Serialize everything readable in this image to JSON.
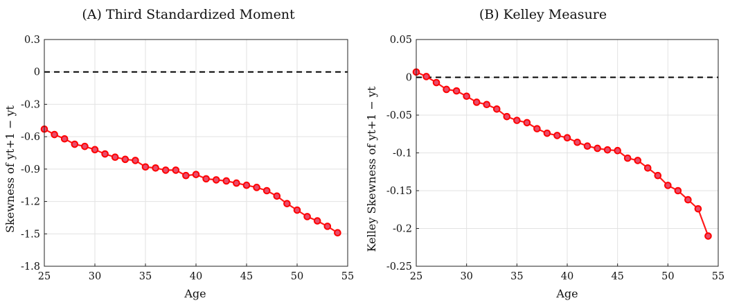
{
  "chart_data": [
    {
      "type": "line",
      "title": "(A) Third Standardized Moment",
      "xlabel": "Age",
      "ylabel": "Skewness of yt+1 − yt",
      "xlim": [
        25,
        55
      ],
      "ylim": [
        -1.8,
        0.3
      ],
      "xticks": [
        "25",
        "30",
        "35",
        "40",
        "45",
        "50",
        "55"
      ],
      "yticks": [
        "0.3",
        "0",
        "-0.3",
        "-0.6",
        "-0.9",
        "-1.2",
        "-1.5",
        "-1.8"
      ],
      "grid": true,
      "reference_line": 0,
      "x": [
        25,
        26,
        27,
        28,
        29,
        30,
        31,
        32,
        33,
        34,
        35,
        36,
        37,
        38,
        39,
        40,
        41,
        42,
        43,
        44,
        45,
        46,
        47,
        48,
        49,
        50,
        51,
        52,
        53,
        54
      ],
      "series": [
        {
          "color": "#ff0000",
          "values": [
            -0.53,
            -0.58,
            -0.62,
            -0.67,
            -0.69,
            -0.72,
            -0.76,
            -0.79,
            -0.81,
            -0.82,
            -0.88,
            -0.89,
            -0.91,
            -0.91,
            -0.96,
            -0.95,
            -0.99,
            -1.0,
            -1.01,
            -1.03,
            -1.05,
            -1.07,
            -1.1,
            -1.15,
            -1.22,
            -1.28,
            -1.34,
            -1.38,
            -1.43,
            -1.49
          ]
        }
      ]
    },
    {
      "type": "line",
      "title": "(B) Kelley Measure",
      "xlabel": "Age",
      "ylabel": "Kelley Skewness of yt+1 − yt",
      "xlim": [
        25,
        55
      ],
      "ylim": [
        -0.25,
        0.05
      ],
      "xticks": [
        "25",
        "30",
        "35",
        "40",
        "45",
        "50",
        "55"
      ],
      "yticks": [
        "0.05",
        "0",
        "-0.05",
        "-0.1",
        "-0.15",
        "-0.2",
        "-0.25"
      ],
      "grid": true,
      "reference_line": 0,
      "x": [
        25,
        26,
        27,
        28,
        29,
        30,
        31,
        32,
        33,
        34,
        35,
        36,
        37,
        38,
        39,
        40,
        41,
        42,
        43,
        44,
        45,
        46,
        47,
        48,
        49,
        50,
        51,
        52,
        53,
        54
      ],
      "series": [
        {
          "color": "#ff0000",
          "values": [
            0.007,
            0.001,
            -0.007,
            -0.016,
            -0.018,
            -0.025,
            -0.033,
            -0.036,
            -0.042,
            -0.052,
            -0.057,
            -0.06,
            -0.068,
            -0.074,
            -0.077,
            -0.08,
            -0.086,
            -0.091,
            -0.094,
            -0.096,
            -0.097,
            -0.107,
            -0.11,
            -0.12,
            -0.13,
            -0.143,
            -0.15,
            -0.162,
            -0.174,
            -0.21
          ]
        }
      ]
    }
  ]
}
